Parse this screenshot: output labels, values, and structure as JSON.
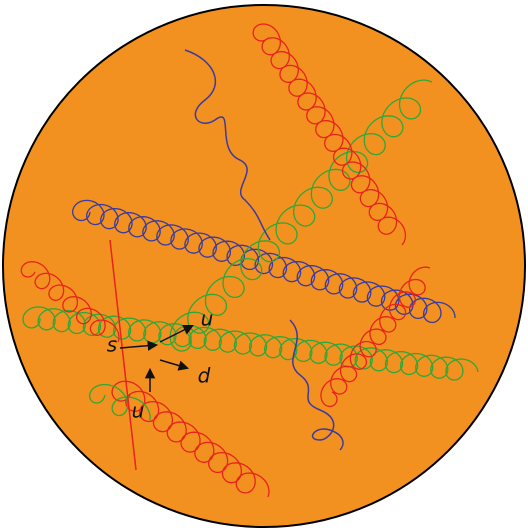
{
  "labels": [
    "s",
    "u",
    "d",
    "u"
  ]
}
